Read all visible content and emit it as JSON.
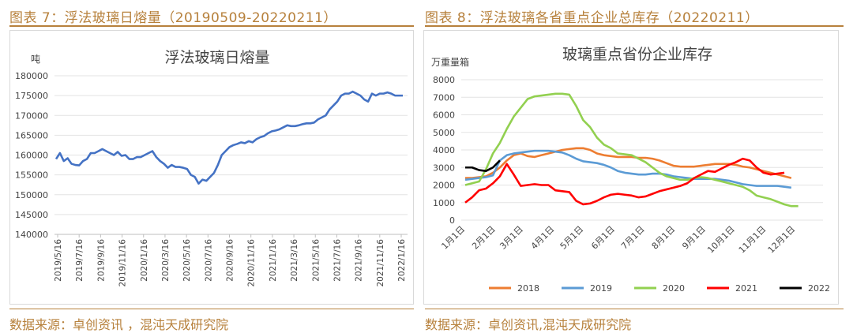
{
  "colors": {
    "accent": "#b7813c",
    "line_left": "#4472c4",
    "s2018": "#ed7d31",
    "s2019": "#5b9bd5",
    "s2020": "#92d050",
    "s2021": "#ff0000",
    "s2022": "#000000"
  },
  "left": {
    "figure_title": "图表 7：浮法玻璃日熔量（20190509-20220211）",
    "source": "数据来源：卓创资讯 ，混沌天成研究院",
    "chart_data": {
      "type": "line",
      "title": "浮法玻璃日熔量",
      "ylabel": "吨",
      "xlabel": "",
      "ylim": [
        140000,
        180000
      ],
      "y_ticks": [
        "180000",
        "175000",
        "170000",
        "165000",
        "160000",
        "155000",
        "150000",
        "145000",
        "140000"
      ],
      "x_ticks": [
        "2019/5/16",
        "2019/7/16",
        "2019/9/16",
        "2019/11/16",
        "2020/1/16",
        "2020/3/16",
        "2020/5/16",
        "2020/7/16",
        "2020/9/16",
        "2020/11/16",
        "2021/1/16",
        "2021/3/16",
        "2021/5/16",
        "2021/7/16",
        "2021/9/16",
        "2021/11/16",
        "2022/1/16"
      ],
      "grid": true,
      "series": [
        {
          "values": [
            159000,
            160500,
            158500,
            159200,
            157800,
            157500,
            157400,
            158500,
            159000,
            160500,
            160500,
            161000,
            161500,
            161000,
            160500,
            160000,
            160800,
            159800,
            160000,
            159000,
            159000,
            159500,
            159500,
            160000,
            160500,
            161000,
            159500,
            158500,
            157800,
            156800,
            157500,
            157000,
            157000,
            156800,
            156500,
            155000,
            154500,
            152800,
            153800,
            153500,
            154500,
            155500,
            157500,
            160000,
            161000,
            162000,
            162500,
            162800,
            163200,
            163000,
            163500,
            163200,
            164000,
            164500,
            164800,
            165500,
            166000,
            166200,
            166500,
            167000,
            167500,
            167300,
            167300,
            167500,
            167800,
            168000,
            168000,
            168200,
            169000,
            169500,
            170000,
            171500,
            172500,
            173500,
            175000,
            175500,
            175500,
            176000,
            175500,
            175000,
            174000,
            173500,
            175500,
            175000,
            175500,
            175500,
            175800,
            175500,
            175000,
            175000,
            175000
          ]
        }
      ]
    }
  },
  "right": {
    "figure_title": "图表 8：浮法玻璃各省重点企业总库存（20220211）",
    "source": "数据来源：卓创资讯,混沌天成研究院",
    "chart_data": {
      "type": "line",
      "title": "玻璃重点省份企业库存",
      "ylabel": "万重量箱",
      "xlabel": "",
      "ylim": [
        0,
        8000
      ],
      "y_ticks": [
        "8000",
        "7000",
        "6000",
        "5000",
        "4000",
        "3000",
        "2000",
        "1000",
        "0"
      ],
      "x_ticks": [
        "1月1日",
        "2月1日",
        "3月1日",
        "4月1日",
        "5月1日",
        "6月1日",
        "7月1日",
        "8月1日",
        "9月1日",
        "10月1日",
        "11月1日",
        "12月1日"
      ],
      "x_unit": "week",
      "legend_position": "bottom",
      "grid": true,
      "series": [
        {
          "name": "2018",
          "values": [
            2400,
            2400,
            2450,
            2500,
            2700,
            3000,
            3400,
            3700,
            3800,
            3650,
            3600,
            3700,
            3800,
            3900,
            4000,
            4050,
            4100,
            4100,
            4000,
            3800,
            3700,
            3650,
            3600,
            3600,
            3600,
            3550,
            3550,
            3500,
            3400,
            3250,
            3100,
            3050,
            3050,
            3050,
            3100,
            3150,
            3200,
            3200,
            3200,
            3150,
            3050,
            3000,
            2900,
            2800,
            2700,
            2600,
            2500,
            2400
          ]
        },
        {
          "name": "2019",
          "values": [
            2300,
            2350,
            2400,
            2450,
            2550,
            3400,
            3700,
            3800,
            3850,
            3900,
            3950,
            3950,
            3950,
            3900,
            3850,
            3700,
            3500,
            3350,
            3300,
            3250,
            3150,
            3000,
            2800,
            2700,
            2650,
            2600,
            2600,
            2650,
            2650,
            2600,
            2500,
            2450,
            2400,
            2350,
            2350,
            2350,
            2350,
            2300,
            2250,
            2150,
            2050,
            2000,
            1950,
            1950,
            1950,
            1950,
            1900,
            1850
          ]
        },
        {
          "name": "2020",
          "values": [
            2000,
            2100,
            2200,
            2900,
            3800,
            4400,
            5200,
            5900,
            6400,
            6900,
            7050,
            7100,
            7150,
            7200,
            7200,
            7150,
            6500,
            5700,
            5300,
            4700,
            4300,
            4100,
            3800,
            3750,
            3700,
            3500,
            3300,
            3000,
            2700,
            2500,
            2400,
            2300,
            2300,
            2400,
            2450,
            2400,
            2300,
            2200,
            2100,
            2000,
            1900,
            1700,
            1400,
            1300,
            1200,
            1050,
            900,
            800,
            800
          ]
        },
        {
          "name": "2021",
          "values": [
            1000,
            1300,
            1700,
            1800,
            2100,
            2500,
            3200,
            2600,
            1950,
            2000,
            2050,
            2000,
            2000,
            1700,
            1650,
            1600,
            1100,
            900,
            950,
            1100,
            1300,
            1450,
            1500,
            1450,
            1400,
            1300,
            1350,
            1500,
            1650,
            1750,
            1850,
            1950,
            2100,
            2400,
            2600,
            2800,
            2750,
            2950,
            3150,
            3300,
            3500,
            3400,
            3000,
            2700,
            2600,
            2650,
            2700
          ]
        },
        {
          "name": "2022",
          "values": [
            3000,
            3000,
            2850,
            2800,
            3000,
            3400
          ]
        }
      ]
    }
  }
}
